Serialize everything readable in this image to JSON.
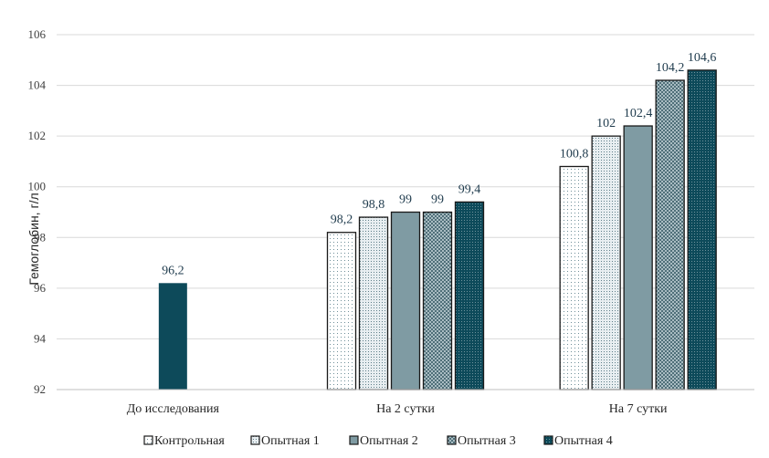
{
  "chart_data": {
    "type": "bar",
    "title": "",
    "xlabel": "",
    "ylabel": "Гемоглобин, г/л",
    "ylim": [
      92,
      106
    ],
    "yticks": [
      92,
      94,
      96,
      98,
      100,
      102,
      104,
      106
    ],
    "ytick_labels": [
      "92",
      "94",
      "96",
      "98",
      "100",
      "102",
      "104",
      "106"
    ],
    "grid": true,
    "legend_position": "bottom",
    "categories": [
      "До исследования",
      "На 2 сутки",
      "На 7 сутки"
    ],
    "series": [
      {
        "name": "Контрольная",
        "values": [
          null,
          98.2,
          100.8
        ],
        "labels": [
          "",
          "98,2",
          "100,8"
        ],
        "color": "#ffffff",
        "pattern": "dots-fine"
      },
      {
        "name": "Опытная  1",
        "values": [
          null,
          98.8,
          102
        ],
        "labels": [
          "",
          "98,8",
          "102"
        ],
        "color": "#cfdde3",
        "pattern": "dots-light"
      },
      {
        "name": "Опытная  2",
        "values": [
          null,
          99,
          102.4
        ],
        "labels": [
          "",
          "99",
          "102,4"
        ],
        "color": "#7f9ba3",
        "pattern": "solid"
      },
      {
        "name": "Опытная  3",
        "values": [
          null,
          99,
          104.2
        ],
        "labels": [
          "",
          "99",
          "104,2"
        ],
        "color": "#8aa3ab",
        "pattern": "checker"
      },
      {
        "name": "Опытная  4",
        "values": [
          96.2,
          99.4,
          104.6
        ],
        "labels": [
          "96,2",
          "99,4",
          "104,6"
        ],
        "color": "#0d4a5a",
        "pattern": "dots-dense"
      }
    ]
  }
}
